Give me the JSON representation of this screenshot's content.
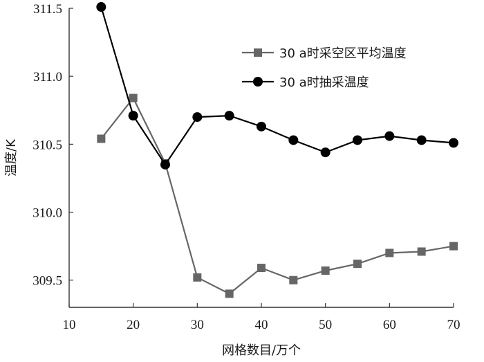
{
  "chart_data": {
    "type": "line",
    "title": "",
    "xlabel": "网格数目/万个",
    "ylabel": "温度/K",
    "xlim": [
      10,
      70
    ],
    "ylim": [
      309.3,
      311.5
    ],
    "xticks": [
      10,
      20,
      30,
      40,
      50,
      60,
      70
    ],
    "yticks": [
      309.5,
      310.0,
      310.5,
      311.0,
      311.5
    ],
    "ytick_labels": [
      "309.5",
      "310.0",
      "310.5",
      "311.0",
      "311.5"
    ],
    "grid": false,
    "legend_position": "top-right",
    "series": [
      {
        "name": "30 a时采空区平均温度",
        "marker": "square",
        "color": "#666666",
        "x": [
          15,
          20,
          25,
          30,
          35,
          40,
          45,
          50,
          55,
          60,
          65,
          70
        ],
        "y": [
          310.54,
          310.84,
          310.36,
          309.52,
          309.4,
          309.59,
          309.5,
          309.57,
          309.62,
          309.7,
          309.71,
          309.75
        ]
      },
      {
        "name": "30 a时抽采温度",
        "marker": "circle",
        "color": "#000000",
        "x": [
          15,
          20,
          25,
          30,
          35,
          40,
          45,
          50,
          55,
          60,
          65,
          70
        ],
        "y": [
          311.51,
          310.71,
          310.35,
          310.7,
          310.71,
          310.63,
          310.53,
          310.44,
          310.53,
          310.56,
          310.53,
          310.51
        ]
      }
    ]
  }
}
